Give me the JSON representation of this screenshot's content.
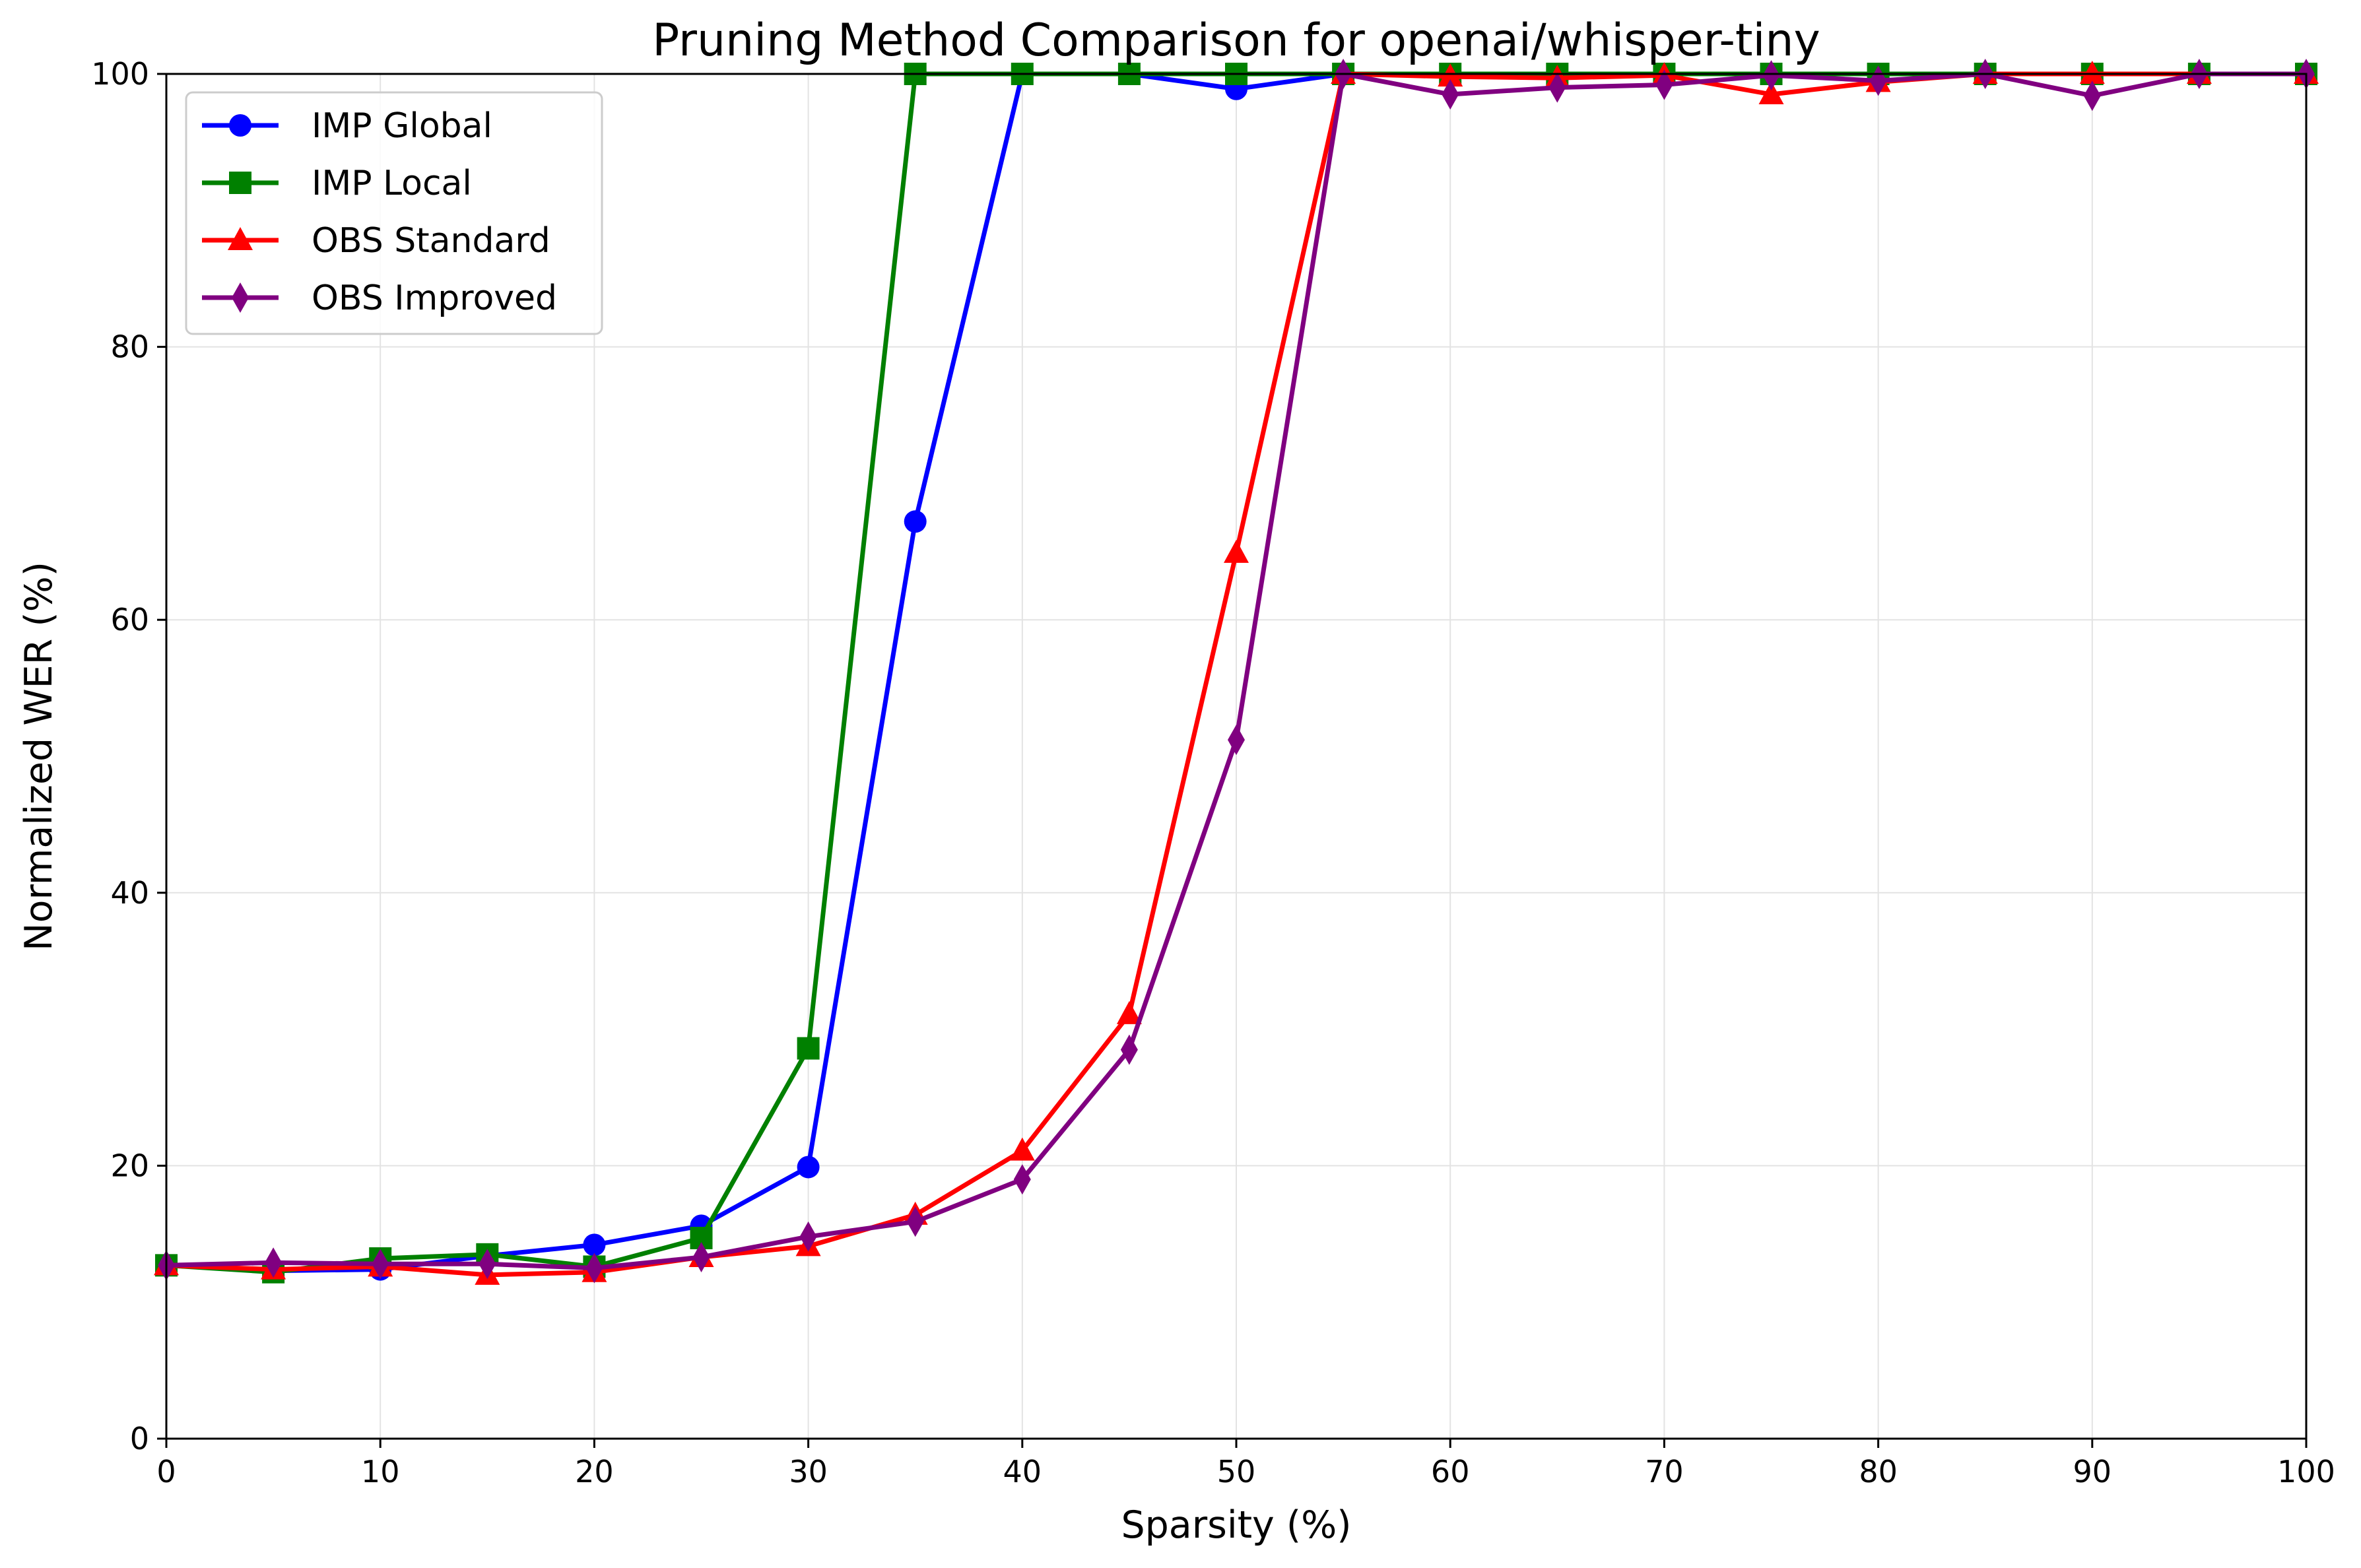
{
  "chart_data": {
    "type": "line",
    "title": "Pruning Method Comparison for openai/whisper-tiny",
    "xlabel": "Sparsity (%)",
    "ylabel": "Normalized WER (%)",
    "xlim": [
      0,
      100
    ],
    "ylim": [
      0,
      100
    ],
    "x_ticks": [
      0,
      10,
      20,
      30,
      40,
      50,
      60,
      70,
      80,
      90,
      100
    ],
    "y_ticks": [
      0,
      20,
      40,
      60,
      80,
      100
    ],
    "grid": true,
    "legend_position": "top-left",
    "x": [
      0,
      5,
      10,
      15,
      20,
      25,
      30,
      35,
      40,
      45,
      50,
      55,
      60,
      65,
      70,
      75,
      80,
      85,
      90,
      95,
      100
    ],
    "series": [
      {
        "name": "IMP Global",
        "color": "#0000ff",
        "marker": "circle",
        "values": [
          12.7,
          12.3,
          12.4,
          13.4,
          14.2,
          15.6,
          19.9,
          67.2,
          100,
          100,
          98.9,
          100,
          100,
          100,
          100,
          100,
          100,
          100,
          100,
          100,
          100
        ]
      },
      {
        "name": "IMP Local",
        "color": "#008000",
        "marker": "square",
        "values": [
          12.7,
          12.2,
          13.2,
          13.5,
          12.6,
          14.7,
          28.6,
          100,
          100,
          100,
          100,
          100,
          100,
          100,
          100,
          100,
          100,
          100,
          100,
          100,
          100
        ]
      },
      {
        "name": "OBS Standard",
        "color": "#ff0000",
        "marker": "triangle",
        "values": [
          12.7,
          12.4,
          12.6,
          12.0,
          12.2,
          13.3,
          14.1,
          16.4,
          21.1,
          31.1,
          64.9,
          100,
          99.8,
          99.7,
          99.9,
          98.5,
          99.4,
          100,
          100,
          100,
          100
        ]
      },
      {
        "name": "OBS Improved",
        "color": "#800080",
        "marker": "diamond",
        "values": [
          12.7,
          12.9,
          12.8,
          12.8,
          12.5,
          13.3,
          14.8,
          15.9,
          19.0,
          28.5,
          51.2,
          100,
          98.5,
          99.0,
          99.2,
          99.9,
          99.5,
          100,
          98.4,
          100,
          100
        ]
      }
    ]
  }
}
